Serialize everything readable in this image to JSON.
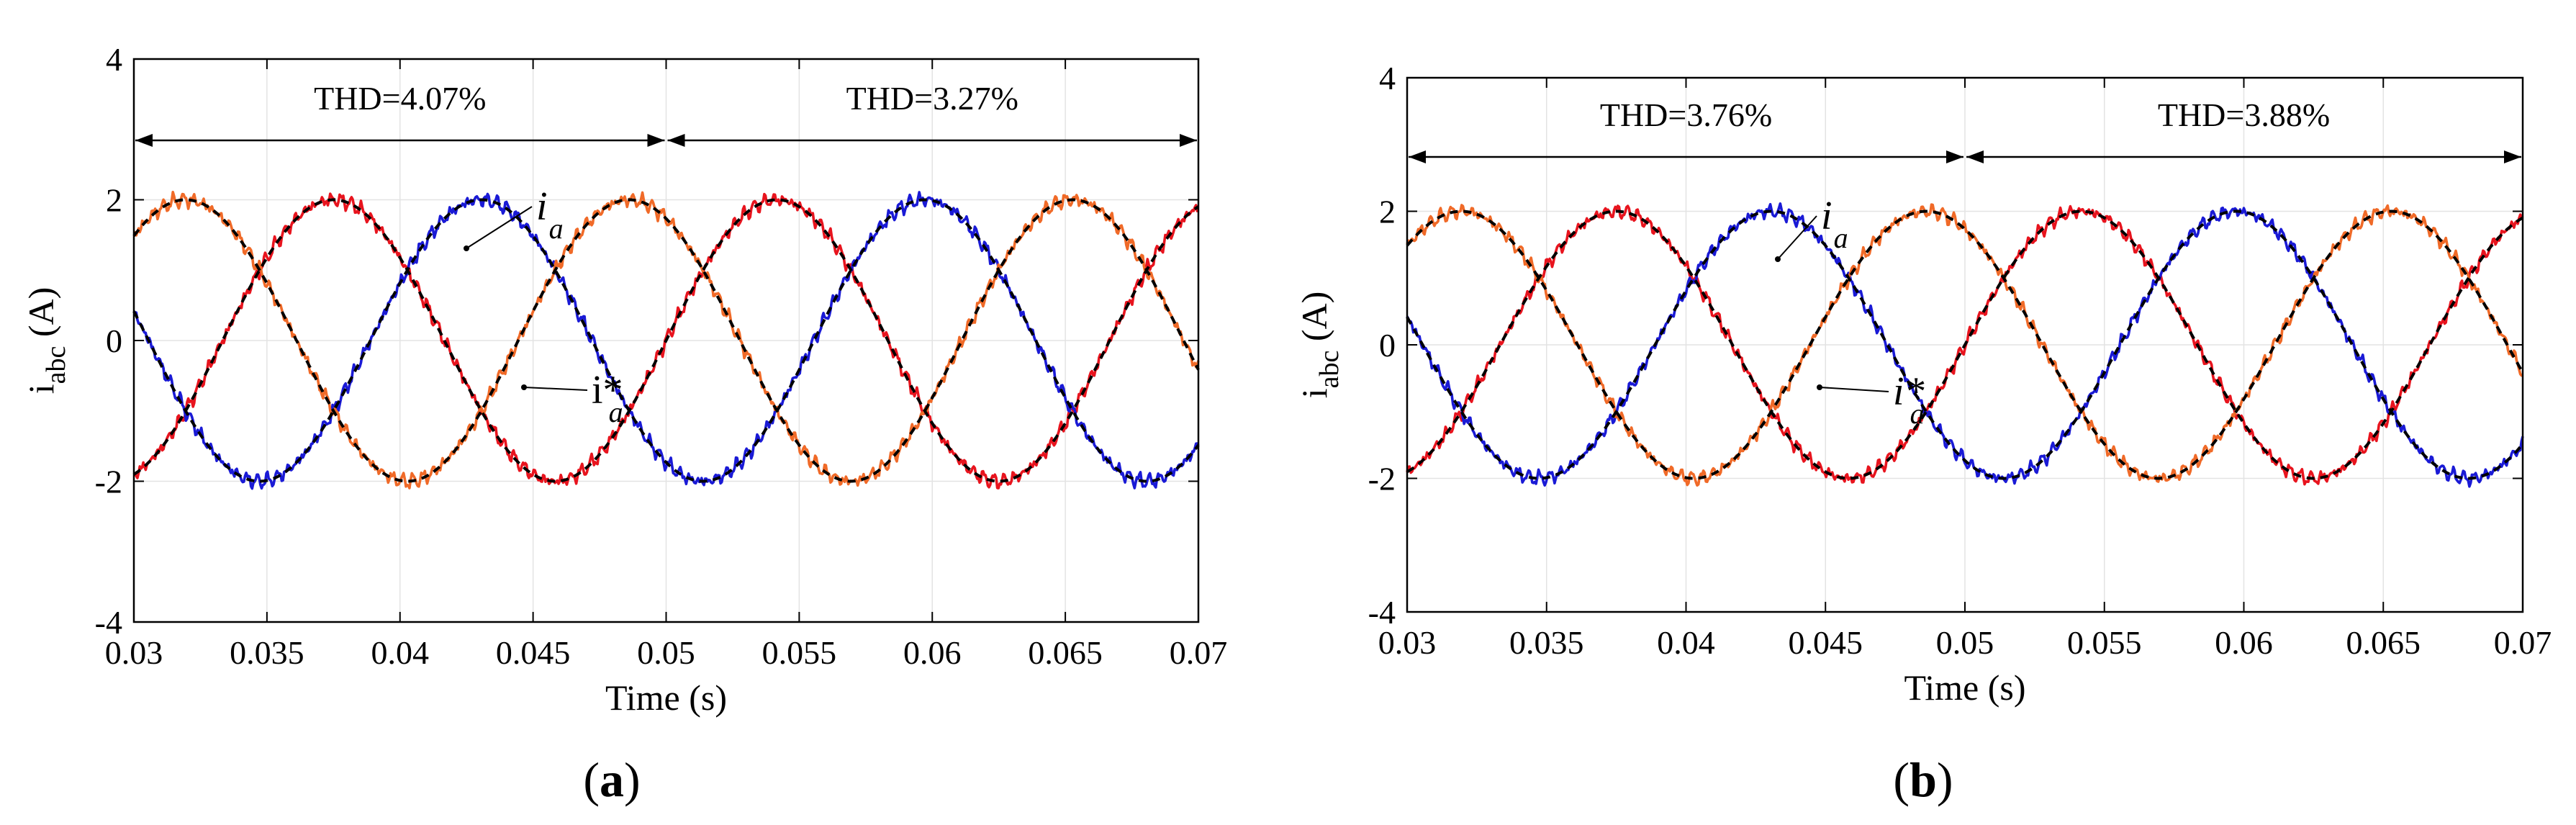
{
  "chart_data": [
    {
      "type": "line",
      "panel": "a",
      "caption": {
        "open": "(",
        "letter": "a",
        "close": ")"
      },
      "xlabel": "Time (s)",
      "ylabel": {
        "main": "i",
        "sub": "abc",
        "unit": " (A)"
      },
      "xlim": [
        0.03,
        0.07
      ],
      "ylim": [
        -4,
        4
      ],
      "xticks": [
        "0.03",
        "0.035",
        "0.04",
        "0.045",
        "0.05",
        "0.055",
        "0.06",
        "0.065",
        "0.07"
      ],
      "yticks": [
        "-4",
        "-2",
        "0",
        "2",
        "4"
      ],
      "grid": true,
      "thd_regions": [
        {
          "label": "THD=4.07%",
          "from": 0.03,
          "to": 0.05
        },
        {
          "label": "THD=3.27%",
          "from": 0.05,
          "to": 0.07
        }
      ],
      "annotations": [
        {
          "main": "i",
          "sub": "a",
          "star": false,
          "italic": true
        },
        {
          "main": "i*",
          "sub": "a",
          "star": true,
          "italic": false
        }
      ],
      "waveform": {
        "frequency_hz": 60,
        "amplitude_a": 2
      },
      "series": [
        {
          "name": "i_a",
          "phase_deg": 0,
          "color": "#e8141e"
        },
        {
          "name": "i_b",
          "phase_deg": -120,
          "color": "#1a1ad6"
        },
        {
          "name": "i_c",
          "phase_deg": 120,
          "color": "#f06a28"
        },
        {
          "name": "i*_abc reference",
          "color": "#000000",
          "style": "dashed"
        }
      ]
    },
    {
      "type": "line",
      "panel": "b",
      "caption": {
        "open": "(",
        "letter": "b",
        "close": ")"
      },
      "xlabel": "Time (s)",
      "ylabel": {
        "main": "i",
        "sub": "abc",
        "unit": " (A)"
      },
      "xlim": [
        0.03,
        0.07
      ],
      "ylim": [
        -4,
        4
      ],
      "xticks": [
        "0.03",
        "0.035",
        "0.04",
        "0.045",
        "0.05",
        "0.055",
        "0.06",
        "0.065",
        "0.07"
      ],
      "yticks": [
        "-4",
        "-2",
        "0",
        "2",
        "4"
      ],
      "grid": true,
      "thd_regions": [
        {
          "label": "THD=3.76%",
          "from": 0.03,
          "to": 0.05
        },
        {
          "label": "THD=3.88%",
          "from": 0.05,
          "to": 0.07
        }
      ],
      "annotations": [
        {
          "main": "i",
          "sub": "a",
          "star": false,
          "italic": true
        },
        {
          "main": "i*",
          "sub": "a",
          "star": true,
          "italic": true
        }
      ],
      "waveform": {
        "frequency_hz": 60,
        "amplitude_a": 2
      },
      "series": [
        {
          "name": "i_a",
          "phase_deg": 0,
          "color": "#e8141e"
        },
        {
          "name": "i_b",
          "phase_deg": -120,
          "color": "#1a1ad6"
        },
        {
          "name": "i_c",
          "phase_deg": 120,
          "color": "#f06a28"
        },
        {
          "name": "i*_abc reference",
          "color": "#000000",
          "style": "dashed"
        }
      ]
    }
  ]
}
